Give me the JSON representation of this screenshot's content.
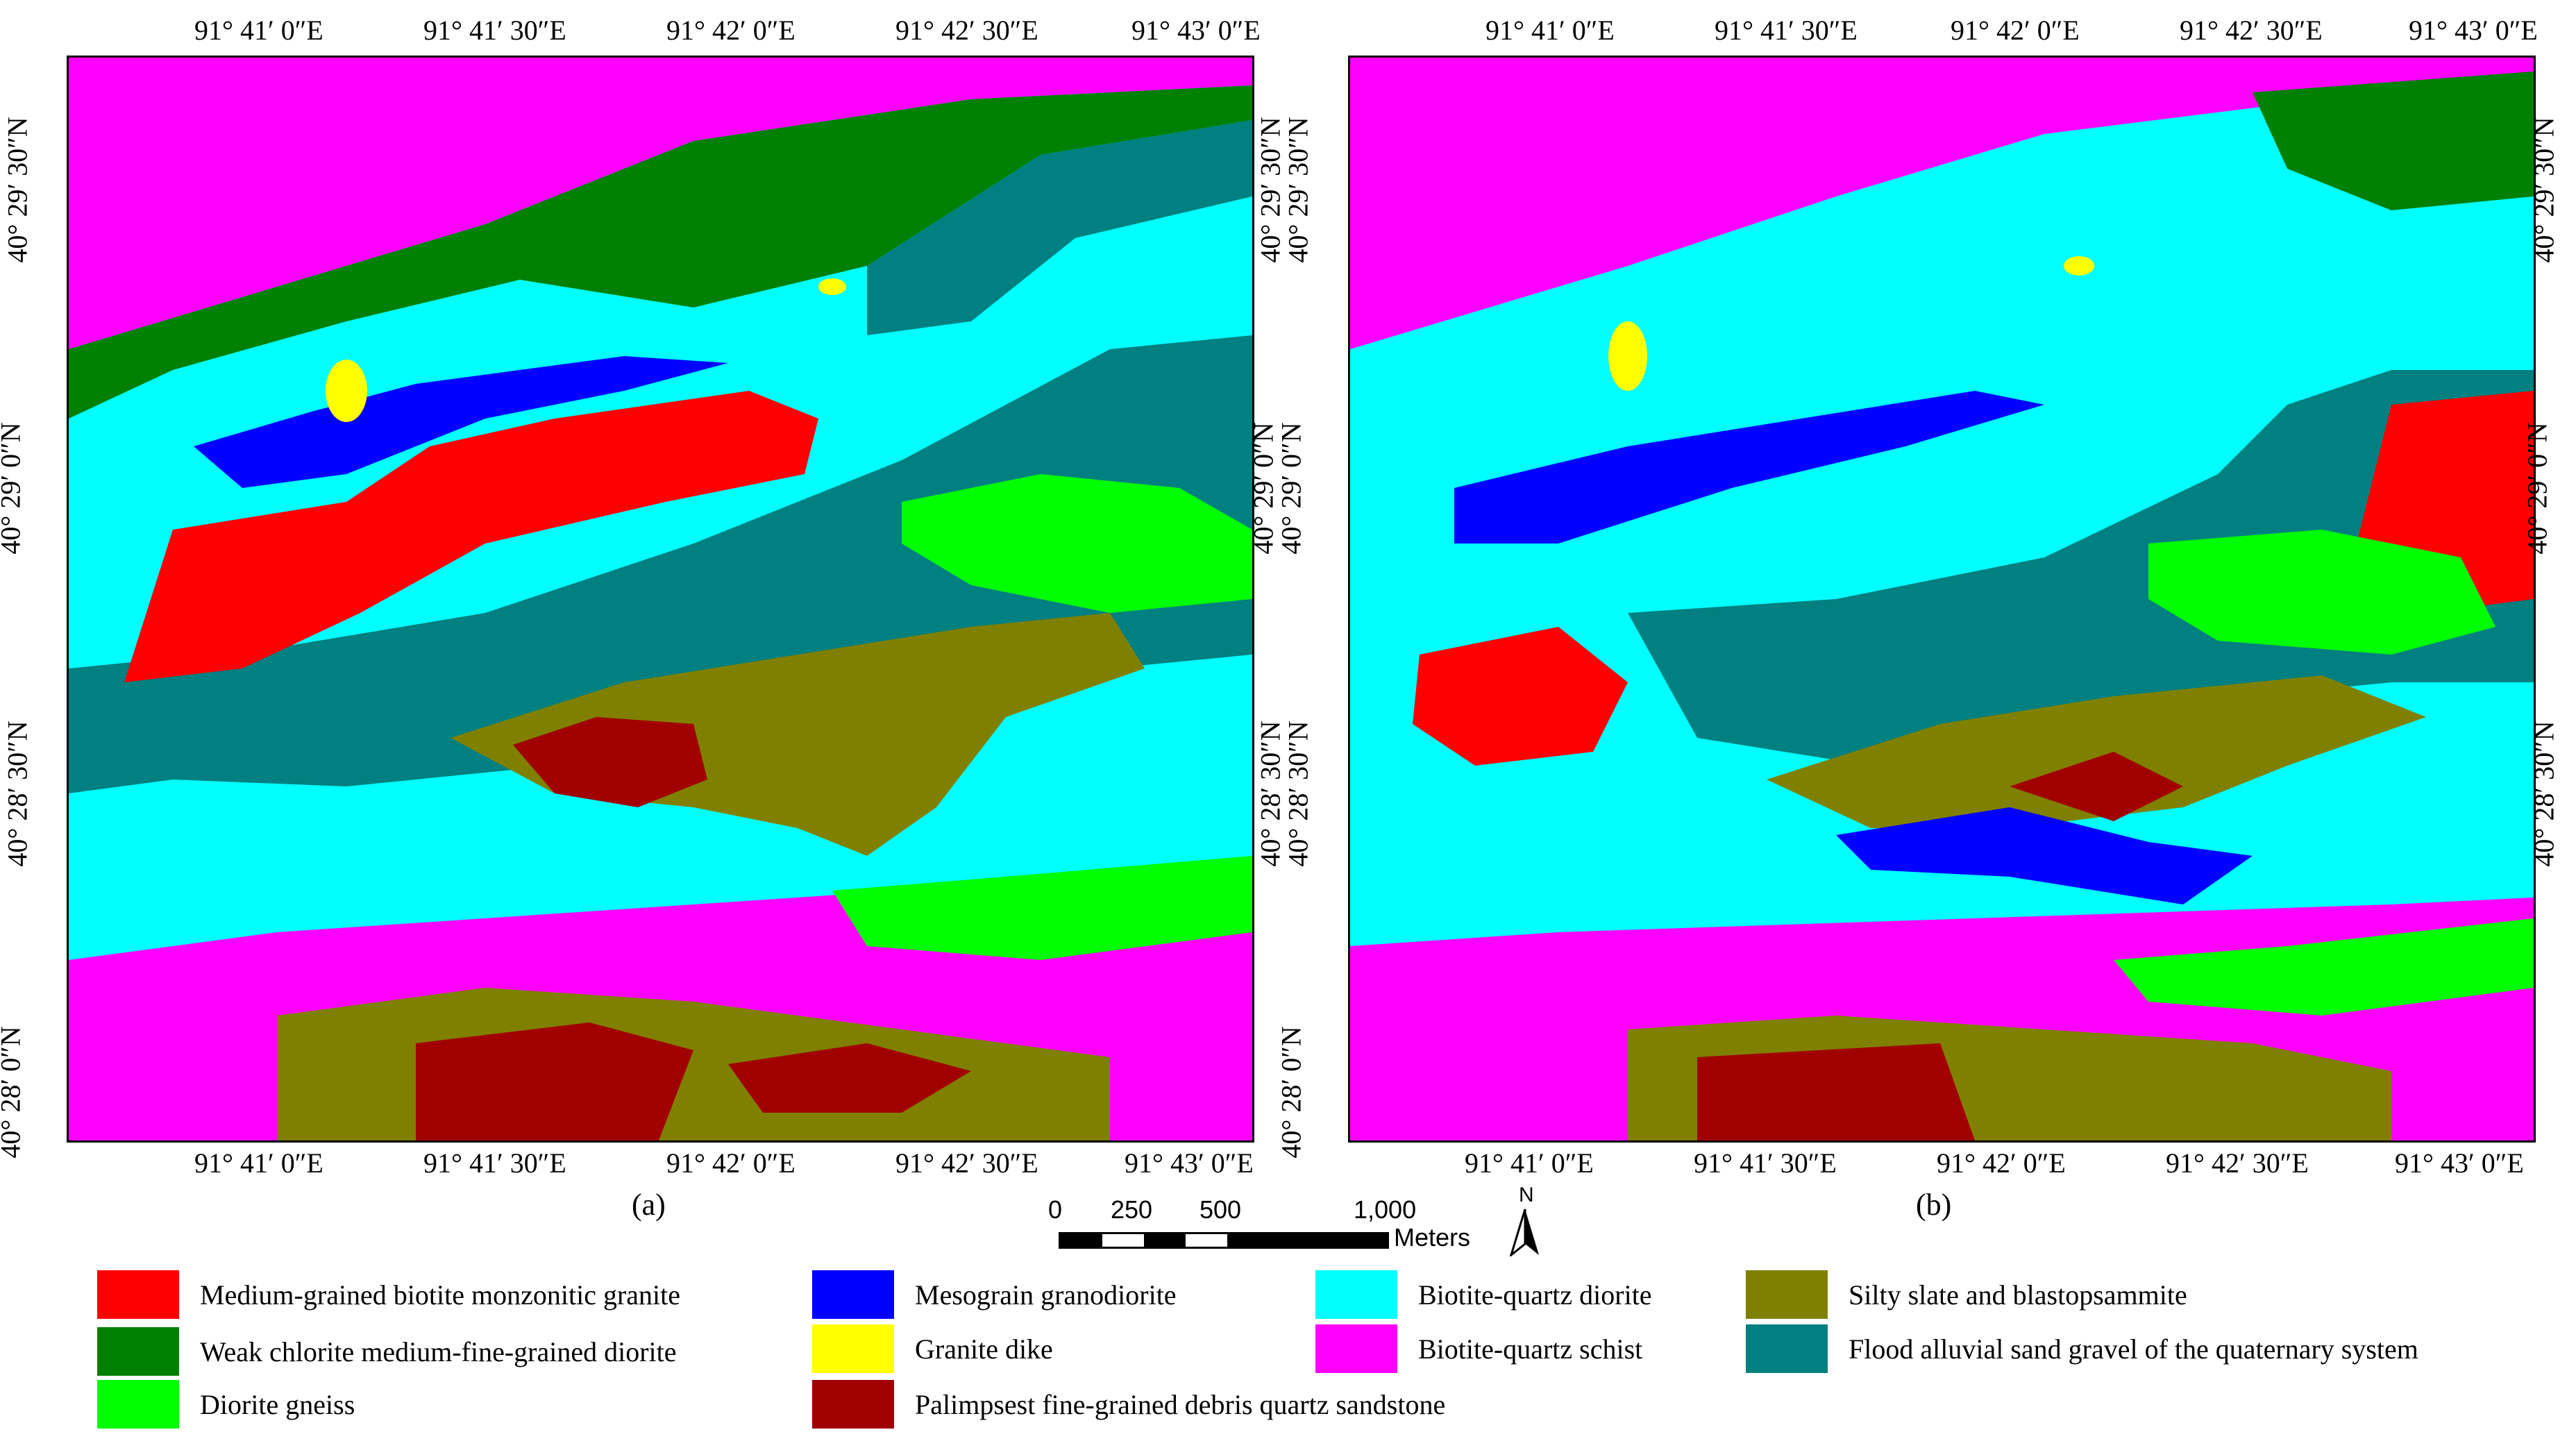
{
  "panels": [
    {
      "id": "a",
      "label": "(a)"
    },
    {
      "id": "b",
      "label": "(b)"
    }
  ],
  "axes": {
    "lon_ticks": [
      "91° 41′ 0″E",
      "91° 41′ 30″E",
      "91° 42′ 0″E",
      "91° 42′ 30″E",
      "91° 43′ 0″E"
    ],
    "lat_ticks": [
      "40° 29′ 30″N",
      "40° 29′ 0″N",
      "40° 28′ 30″N",
      "40° 28′ 0″N"
    ]
  },
  "scale_bar": {
    "labels": [
      "0",
      "250",
      "500",
      "1,000"
    ],
    "unit": "Meters"
  },
  "north_arrow": {
    "label": "N",
    "icon": "north-arrow-icon"
  },
  "legend": [
    {
      "label": "Medium-grained biotite monzonitic granite",
      "color": "#ff0000"
    },
    {
      "label": "Weak chlorite medium-fine-grained diorite",
      "color": "#008000"
    },
    {
      "label": "Diorite gneiss",
      "color": "#00ff00"
    },
    {
      "label": "Mesograin granodiorite",
      "color": "#0000ff"
    },
    {
      "label": "Granite dike",
      "color": "#ffff00"
    },
    {
      "label": "Palimpsest fine-grained debris quartz sandstone",
      "color": "#a00000"
    },
    {
      "label": "Biotite-quartz diorite",
      "color": "#00ffff"
    },
    {
      "label": "Biotite-quartz schist",
      "color": "#ff00ff"
    },
    {
      "label": "Silty slate and blastopsammite",
      "color": "#808000"
    },
    {
      "label": "Flood alluvial sand gravel of the quaternary system",
      "color": "#008080"
    }
  ]
}
